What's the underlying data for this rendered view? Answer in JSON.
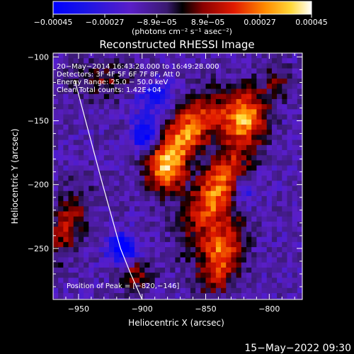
{
  "chart_data": {
    "type": "heatmap",
    "title": "Reconstructed RHESSI Image",
    "xlabel": "Heliocentric X (arcsec)",
    "ylabel": "Heliocentric Y (arcsec)",
    "xlim": [
      -970,
      -774
    ],
    "ylim": [
      -290,
      -97
    ],
    "x_ticks": [
      -950,
      -900,
      -850,
      -800
    ],
    "y_ticks": [
      -100,
      -150,
      -200,
      -250
    ],
    "x_tick_labels": [
      "−950",
      "−900",
      "−850",
      "−800"
    ],
    "y_tick_labels": [
      "−100",
      "−150",
      "−200",
      "−250"
    ],
    "colorbar": {
      "range": [
        -0.00045,
        0.00045
      ],
      "tick_values": [
        -0.00045,
        -0.00027,
        -8.9e-05,
        8.9e-05,
        0.00027,
        0.00045
      ],
      "tick_labels": [
        "−0.00045",
        "−0.00027",
        "−8.9e−05",
        "8.9e−05",
        "0.00027",
        "0.00045"
      ],
      "units": "(photons cm⁻² s⁻¹ asec⁻²)"
    },
    "annotations": [
      "20−May−2014 16:43:28.000 to 16:49:28.000",
      "Detectors: 3F 4F 5F 6F 7F 8F, Att 0",
      "Energy Range: 25.0 − 50.0 keV",
      "Clean    Total counts: 1.42E+04"
    ],
    "peak_label": "Position of Peak = [−820,−146]",
    "peak": [
      -820,
      -146
    ],
    "sources": [
      {
        "x": -865,
        "y": -160,
        "sx": 11,
        "sy": 24,
        "peak": 0.00045,
        "angle": -40
      },
      {
        "x": -820,
        "y": -147,
        "sx": 12,
        "sy": 14,
        "peak": 0.00045,
        "angle": -15
      },
      {
        "x": -842,
        "y": -205,
        "sx": 11,
        "sy": 28,
        "peak": 0.00042,
        "angle": -30
      },
      {
        "x": -838,
        "y": -255,
        "sx": 11,
        "sy": 20,
        "peak": 0.0004,
        "angle": -15
      },
      {
        "x": -880,
        "y": -190,
        "sx": 10,
        "sy": 13,
        "peak": 0.00034,
        "angle": 0
      },
      {
        "x": -958,
        "y": -230,
        "sx": 9,
        "sy": 22,
        "peak": 0.00024,
        "angle": -20
      },
      {
        "x": -930,
        "y": -118,
        "sx": 18,
        "sy": 10,
        "peak": 0.00017,
        "angle": 0
      },
      {
        "x": -793,
        "y": -120,
        "sx": 9,
        "sy": 9,
        "peak": 0.00016,
        "angle": 0
      },
      {
        "x": -905,
        "y": -270,
        "sx": 9,
        "sy": 9,
        "peak": 0.00022,
        "angle": 0
      },
      {
        "x": -915,
        "y": -250,
        "sx": 8,
        "sy": 8,
        "peak": -0.00042,
        "angle": 0
      },
      {
        "x": -898,
        "y": -160,
        "sx": 7,
        "sy": 9,
        "peak": -0.00036,
        "angle": 0
      },
      {
        "x": -890,
        "y": -130,
        "sx": 10,
        "sy": 9,
        "peak": -0.00024,
        "angle": 0
      },
      {
        "x": -820,
        "y": -205,
        "sx": 7,
        "sy": 8,
        "peak": -0.0002,
        "angle": 0
      }
    ],
    "limb_curve": {
      "x": [
        -953,
        -931,
        -917,
        -909,
        -900
      ],
      "y": [
        -118,
        -200,
        -250,
        -270,
        -290
      ]
    }
  },
  "footer": {
    "timestamp": "15−May−2022 09:30"
  }
}
